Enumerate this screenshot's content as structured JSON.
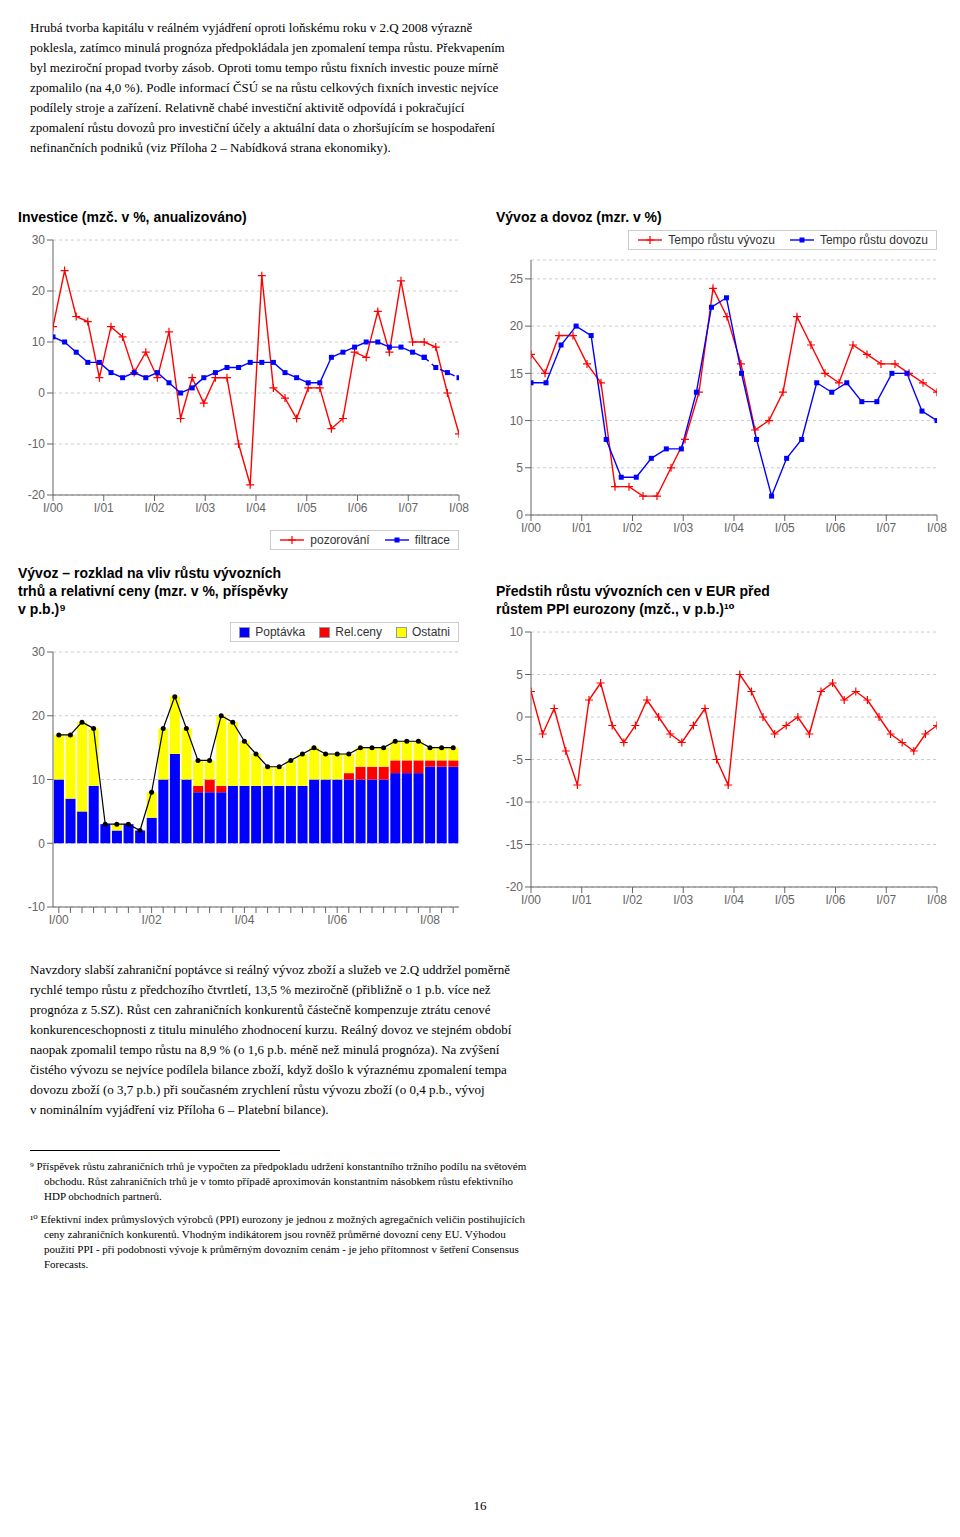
{
  "chart_data": [
    {
      "type": "line",
      "title": "Investice (mzč. v %, anualizováno)",
      "x": [
        0,
        1,
        2,
        3,
        4,
        5,
        6,
        7,
        8,
        9,
        10,
        11,
        12,
        13,
        14,
        15,
        16,
        17,
        18,
        19,
        20,
        21,
        22,
        23,
        24,
        25,
        26,
        27,
        28,
        29,
        30,
        31,
        32,
        33,
        34,
        35
      ],
      "xlim": [
        0,
        35
      ],
      "xticks": [
        {
          "value": 0,
          "label": "I/00"
        },
        {
          "value": 4.375,
          "label": "I/01"
        },
        {
          "value": 8.75,
          "label": "I/02"
        },
        {
          "value": 13.125,
          "label": "I/03"
        },
        {
          "value": 17.5,
          "label": "I/04"
        },
        {
          "value": 21.875,
          "label": "I/05"
        },
        {
          "value": 26.25,
          "label": "I/06"
        },
        {
          "value": 30.625,
          "label": "I/07"
        },
        {
          "value": 35,
          "label": "I/08"
        }
      ],
      "ylim": [
        -20,
        30
      ],
      "yticks": [
        -20,
        -10,
        0,
        10,
        20,
        30
      ],
      "grid": true,
      "legend": "lower right",
      "series": [
        {
          "name": "pozorování",
          "color": "#ff0000",
          "marker": "plus",
          "line_style": "solid",
          "values": [
            13,
            24,
            15,
            14,
            3,
            13,
            11,
            4,
            8,
            3,
            12,
            -5,
            3,
            -2,
            3,
            3,
            -10,
            -18,
            23,
            1,
            -1,
            -5,
            1,
            1,
            -7,
            -5,
            8,
            7,
            16,
            8,
            22,
            10,
            10,
            9,
            0,
            -8
          ]
        },
        {
          "name": "filtrace",
          "color": "#0000ff",
          "marker": "square",
          "line_style": "solid",
          "values": [
            11,
            10,
            8,
            6,
            6,
            4,
            3,
            4,
            3,
            4,
            2,
            0,
            1,
            3,
            4,
            5,
            5,
            6,
            6,
            6,
            4,
            3,
            2,
            2,
            7,
            8,
            9,
            10,
            10,
            9,
            9,
            8,
            7,
            null,
            null,
            null
          ]
        },
        {
          "color": "#0000ff",
          "marker": "square",
          "line_style": "dashed",
          "values": [
            null,
            null,
            null,
            null,
            null,
            null,
            null,
            null,
            null,
            null,
            null,
            null,
            null,
            null,
            null,
            null,
            null,
            null,
            null,
            null,
            null,
            null,
            null,
            null,
            null,
            null,
            null,
            null,
            null,
            null,
            null,
            null,
            7,
            5,
            4,
            3
          ]
        }
      ]
    },
    {
      "type": "line",
      "title": "Vývoz a dovoz (mzr. v %)",
      "xlim": [
        0,
        783
      ],
      "xticks": [
        {
          "value": 0,
          "label": "I/00"
        },
        {
          "value": 97.875,
          "label": "I/01"
        },
        {
          "value": 195.75,
          "label": "I/02"
        },
        {
          "value": 293.625,
          "label": "I/03"
        },
        {
          "value": 391.5,
          "label": "I/04"
        },
        {
          "value": 489.375,
          "label": "I/05"
        },
        {
          "value": 587.25,
          "label": "I/06"
        },
        {
          "value": 685.125,
          "label": "I/07"
        },
        {
          "value": 783,
          "label": "I/08"
        }
      ],
      "ylim": [
        0,
        27
      ],
      "yticks": [
        0,
        5,
        10,
        15,
        20,
        25
      ],
      "grid": true,
      "legend": "upper right",
      "series": [
        {
          "name": "Tempo růstu vývozu",
          "color": "#ff0000",
          "marker": "plus",
          "line_style": "solid",
          "x": [
            0,
            27,
            54,
            81,
            108,
            135,
            162,
            189,
            216,
            243,
            270,
            297,
            324,
            351,
            378,
            405,
            432,
            459,
            486,
            513,
            540,
            567,
            594,
            621,
            648,
            675,
            702,
            729,
            756,
            783
          ],
          "values": [
            17,
            15,
            19,
            19,
            16,
            14,
            3,
            3,
            2,
            2,
            5,
            8,
            13,
            24,
            21,
            16,
            9,
            10,
            13,
            21,
            18,
            15,
            14,
            18,
            17,
            16,
            16,
            15,
            14,
            13
          ]
        },
        {
          "name": "Tempo růstu dovozu",
          "color": "#0000ff",
          "marker": "square",
          "line_style": "solid",
          "x": [
            0,
            29,
            58,
            87,
            116,
            145,
            174,
            203,
            232,
            261,
            290,
            319,
            348,
            377,
            406,
            435,
            464,
            493,
            522,
            551,
            580,
            609,
            638,
            667,
            696,
            725,
            754,
            783
          ],
          "values": [
            14,
            14,
            18,
            20,
            19,
            8,
            4,
            4,
            6,
            7,
            7,
            13,
            22,
            23,
            15,
            8,
            2,
            6,
            8,
            14,
            13,
            14,
            12,
            12,
            15,
            15,
            11,
            10
          ]
        }
      ]
    },
    {
      "type": "bar",
      "title": "Vývoz – rozklad na vliv růstu vývozních\ntrhů a relativní ceny (mzr. v %, příspěvky\nv p.b.)⁹",
      "categories": [
        "I/00",
        null,
        null,
        null,
        null,
        null,
        null,
        null,
        "I/02",
        null,
        null,
        null,
        null,
        null,
        null,
        null,
        "I/04",
        null,
        null,
        null,
        null,
        null,
        null,
        null,
        "I/06",
        null,
        null,
        null,
        null,
        null,
        null,
        null,
        "I/08",
        null,
        null
      ],
      "ylim": [
        -10,
        30
      ],
      "yticks": [
        -10,
        0,
        10,
        20,
        30
      ],
      "grid": true,
      "legend": "upper right",
      "stacked": true,
      "series": [
        {
          "name": "Poptávka",
          "type": "bar",
          "color": "#0000ff",
          "values": [
            10,
            7,
            5,
            9,
            3,
            2,
            3,
            2,
            4,
            10,
            14,
            10,
            8,
            8,
            8,
            9,
            9,
            9,
            9,
            9,
            9,
            9,
            10,
            10,
            10,
            10,
            10,
            10,
            10,
            11,
            11,
            11,
            12,
            12,
            12
          ]
        },
        {
          "name": "Rel.ceny",
          "type": "bar",
          "color": "#ff0000",
          "values": [
            0,
            0,
            0,
            0,
            0,
            0,
            0,
            0,
            0,
            0,
            0,
            0,
            1,
            2,
            1,
            0,
            0,
            0,
            0,
            0,
            0,
            0,
            0,
            0,
            0,
            1,
            2,
            2,
            2,
            2,
            2,
            2,
            1,
            1,
            1
          ]
        },
        {
          "name": "Ostatni",
          "type": "bar",
          "color": "#ffff00",
          "values": [
            7,
            10,
            14,
            9,
            0,
            1,
            0,
            0,
            4,
            8,
            9,
            8,
            4,
            3,
            11,
            10,
            7,
            5,
            3,
            3,
            4,
            5,
            5,
            4,
            4,
            3,
            3,
            3,
            3,
            3,
            3,
            3,
            2,
            2,
            2
          ]
        },
        {
          "type": "line",
          "color": "#000000",
          "marker": "circle",
          "line_style": "solid",
          "values": [
            17,
            17,
            19,
            18,
            3,
            3,
            3,
            2,
            8,
            18,
            23,
            18,
            13,
            13,
            20,
            19,
            16,
            14,
            12,
            12,
            13,
            14,
            15,
            14,
            14,
            14,
            15,
            15,
            15,
            16,
            16,
            16,
            15,
            15,
            15
          ]
        }
      ]
    },
    {
      "type": "line",
      "title": "Předstih růstu vývozních cen v EUR před\nrůstem PPI eurozony (mzč., v p.b.)¹⁰",
      "x": [
        0,
        1,
        2,
        3,
        4,
        5,
        6,
        7,
        8,
        9,
        10,
        11,
        12,
        13,
        14,
        15,
        16,
        17,
        18,
        19,
        20,
        21,
        22,
        23,
        24,
        25,
        26,
        27,
        28,
        29,
        30,
        31,
        32,
        33,
        34,
        35
      ],
      "xlim": [
        0,
        35
      ],
      "xticks": [
        {
          "value": 0,
          "label": "I/00"
        },
        {
          "value": 4.375,
          "label": "I/01"
        },
        {
          "value": 8.75,
          "label": "I/02"
        },
        {
          "value": 13.125,
          "label": "I/03"
        },
        {
          "value": 17.5,
          "label": "I/04"
        },
        {
          "value": 21.875,
          "label": "I/05"
        },
        {
          "value": 26.25,
          "label": "I/06"
        },
        {
          "value": 30.625,
          "label": "I/07"
        },
        {
          "value": 35,
          "label": "I/08"
        }
      ],
      "ylim": [
        -20,
        10
      ],
      "yticks": [
        -20,
        -15,
        -10,
        -5,
        0,
        5,
        10
      ],
      "grid": true,
      "series": [
        {
          "color": "#ff0000",
          "marker": "plus",
          "line_style": "solid",
          "values": [
            3,
            -2,
            1,
            -4,
            -8,
            2,
            4,
            -1,
            -3,
            -1,
            2,
            0,
            -2,
            -3,
            -1,
            1,
            -5,
            -8,
            5,
            3,
            0,
            -2,
            -1,
            0,
            -2,
            3,
            4,
            2,
            3,
            2,
            0,
            -2,
            -3,
            -4,
            -2,
            -1
          ]
        }
      ]
    }
  ],
  "annotations": [
    [
      "Hrubá tvorba kapitálu v reálném vyjádření oproti loňskému roku v 2.Q 2008 výrazně",
      "poklesla, zatímco minulá prognóza předpokládala jen zpomalení tempa růstu. Překvapením",
      "byl meziroční propad tvorby zásob. Oproti tomu tempo růstu fixních investic pouze mírně",
      "zpomalilo (na 4,0 %). Podle informací ČSÚ se na růstu celkových fixních investic nejvíce",
      "podílely stroje a zařízení. Relativně chabé investiční aktivitě odpovídá i pokračující",
      "zpomalení růstu dovozů pro investiční účely a aktuální data o zhoršujícím se hospodaření",
      "nefinančních podniků (viz Příloha 2 – Nabídková strana ekonomiky)."
    ],
    [
      "Navzdory slabší zahraniční poptávce si reálný vývoz zboží a služeb ve 2.Q uddržel poměrně",
      "rychlé tempo růstu z předchozího čtvrtletí, 13,5 % meziročně (přibližně o 1 p.b. více než",
      "prognóza z 5.SZ). Růst cen zahraničních konkurentů částečně kompenzuje ztrátu cenové",
      "konkurenceschopnosti z titulu minulého zhodnocení kurzu. Reálný dovoz ve stejném období",
      "naopak zpomalil tempo růstu na 8,9 % (o 1,6 p.b. méně než minulá prognóza). Na zvýšení",
      "čistého vývozu se nejvíce podílela bilance zboží, když došlo k výraznému zpomalení tempa",
      "dovozu zboží (o 3,7 p.b.) při současném zrychlení růstu vývozu zboží (o 0,4 p.b., vývoj",
      "v nominálním vyjádření viz Příloha 6 – Platební bilance)."
    ],
    [
      "⁹ Příspěvek růstu zahraničních trhů je vypočten za předpokladu udržení konstantního tržního podílu na světovém",
      "obchodu. Růst zahraničních trhů je v tomto případě aproximován konstantním násobkem růstu efektivního",
      "HDP obchodních partnerů."
    ],
    [
      "¹⁰ Efektivní index průmyslových výrobců (PPI) eurozony je jednou z možných agregačních veličin postihujících",
      "ceny zahraničních konkurentů. Vhodným indikátorem jsou rovněž průměrné dovozní ceny EU. Výhodou",
      "použití PPI - při podobnosti vývoje k průměrným dovozním cenám - je jeho přítomnost v šetření Consensus",
      "Forecasts."
    ],
    [
      "16"
    ]
  ]
}
